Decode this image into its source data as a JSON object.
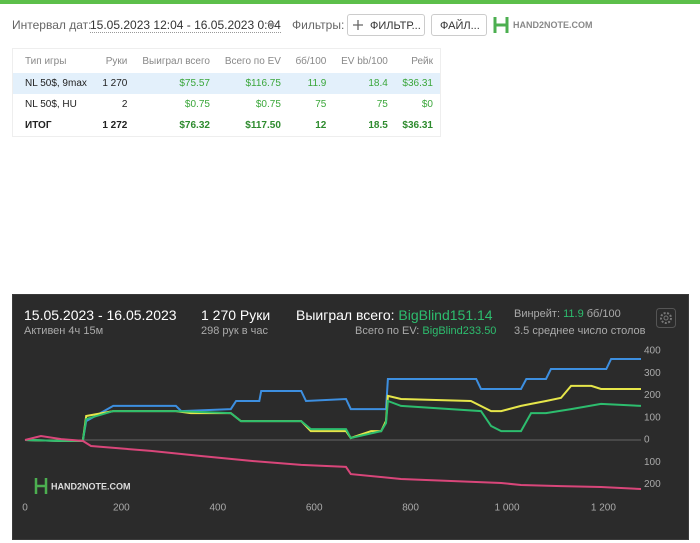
{
  "header": {
    "date_label": "Интервал дат:",
    "date_range": "15.05.2023 12:04 - 16.05.2023 0:04",
    "filters_label": "Фильтры:",
    "filter_button": "ФИЛЬТР...",
    "file_button": "ФАЙЛ...",
    "logo": "HAND2NOTE.COM"
  },
  "table": {
    "columns": [
      "Тип игры",
      "Руки",
      "Выиграл всего",
      "Всего по EV",
      "бб/100",
      "EV bb/100",
      "Рейк"
    ],
    "rows": [
      [
        "NL 50$, 9max",
        "1 270",
        "$75.57",
        "$116.75",
        "11.9",
        "18.4",
        "$36.31"
      ],
      [
        "NL 50$, HU",
        "2",
        "$0.75",
        "$0.75",
        "75",
        "75",
        "$0"
      ],
      [
        "ИТОГ",
        "1 272",
        "$76.32",
        "$117.50",
        "12",
        "18.5",
        "$36.31"
      ]
    ]
  },
  "summary": {
    "period": "15.05.2023 - 16.05.2023",
    "active": "Активен 4ч 15м",
    "hands": "1 270 Руки",
    "hands_per_hour": "298 рук в час",
    "won_label": "Выиграл всего:",
    "won_value": "BigBlind151.14",
    "ev_label": "Всего по EV:",
    "ev_value": "BigBlind233.50",
    "winrate_label": "Винрейт:",
    "winrate_value": "11.9",
    "winrate_unit": "бб/100",
    "tables": "3.5 среднее число столов"
  },
  "graph": {
    "type": "line",
    "logo": "HAND2NOTE.COM",
    "xlim": [
      0,
      1278
    ],
    "ylim": [
      -230,
      420
    ],
    "xticks": [
      0,
      200,
      400,
      600,
      800,
      {
        "value": 1000,
        "label": "1 000"
      },
      {
        "value": 1200,
        "label": "1 200"
      }
    ],
    "yticks": [
      400,
      300,
      200,
      100,
      0,
      {
        "value": -100,
        "label": "100"
      },
      {
        "value": -200,
        "label": "200"
      }
    ],
    "series": [
      {
        "color": "#3d8fe0",
        "x": [
          0,
          75,
          120,
          127,
          183,
          313,
          324,
          427,
          438,
          486,
          490,
          573,
          583,
          666,
          676,
          749,
          753,
          936,
          946,
          1029,
          1040,
          1081,
          1091,
          1206,
          1216,
          1278
        ],
        "values": [
          0,
          -4,
          -4,
          85,
          153,
          153,
          130,
          139,
          175,
          175,
          220,
          220,
          175,
          184,
          139,
          139,
          274,
          274,
          229,
          229,
          274,
          274,
          319,
          319,
          364,
          364
        ]
      },
      {
        "color": "#e6e64a",
        "x": [
          0,
          75,
          120,
          127,
          183,
          313,
          344,
          427,
          448,
          573,
          593,
          666,
          676,
          718,
          739,
          749,
          753,
          780,
          925,
          967,
          988,
          1029,
          1050,
          1081,
          1112,
          1133,
          1175,
          1195,
          1278
        ],
        "values": [
          0,
          -4,
          -4,
          108,
          130,
          130,
          121,
          121,
          85,
          85,
          40,
          40,
          9,
          40,
          40,
          85,
          198,
          184,
          175,
          130,
          130,
          153,
          162,
          175,
          189,
          243,
          243,
          229,
          229
        ]
      },
      {
        "color": "#2dbd6e",
        "x": [
          0,
          75,
          120,
          127,
          183,
          313,
          427,
          448,
          573,
          593,
          666,
          676,
          739,
          749,
          753,
          780,
          946,
          967,
          988,
          1029,
          1050,
          1081,
          1133,
          1195,
          1278
        ],
        "values": [
          0,
          -4,
          -4,
          94,
          130,
          130,
          121,
          85,
          85,
          49,
          49,
          9,
          40,
          76,
          175,
          153,
          130,
          63,
          40,
          40,
          121,
          121,
          139,
          162,
          153
        ]
      },
      {
        "color": "#d9467a",
        "x": [
          0,
          33,
          75,
          120,
          137,
          261,
          365,
          469,
          573,
          666,
          676,
          780,
          884,
          988,
          1029,
          1112,
          1195,
          1278
        ],
        "values": [
          0,
          18,
          4,
          -4,
          -27,
          -49,
          -72,
          -94,
          -112,
          -121,
          -153,
          -175,
          -184,
          -193,
          -202,
          -207,
          -211,
          -220
        ]
      }
    ]
  }
}
